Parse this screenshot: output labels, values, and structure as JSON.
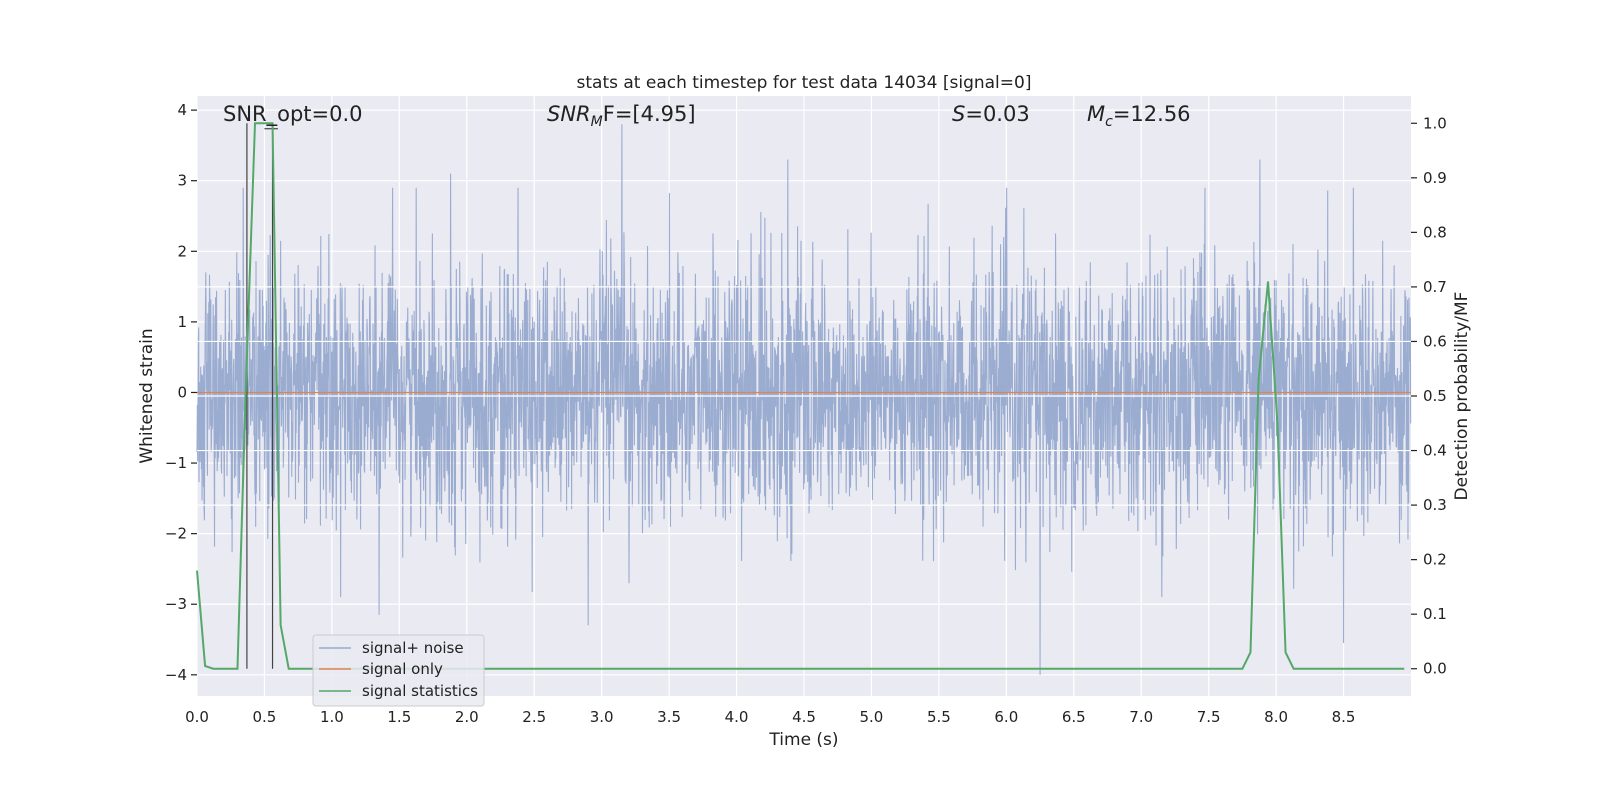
{
  "chart_data": {
    "type": "line",
    "title": "stats at each timestep for test data 14034 [signal=0]",
    "xlabel": "Time (s)",
    "ylabel_left": "Whitened strain",
    "ylabel_right": "Detection probability/MF",
    "xlim": [
      0.0,
      9.0
    ],
    "ylim_left": [
      -4.3,
      4.2
    ],
    "ylim_right": [
      -0.05,
      1.05
    ],
    "xticks": [
      "0.0",
      "0.5",
      "1.0",
      "1.5",
      "2.0",
      "2.5",
      "3.0",
      "3.5",
      "4.0",
      "4.5",
      "5.0",
      "5.5",
      "6.0",
      "6.5",
      "7.0",
      "7.5",
      "8.0",
      "8.5"
    ],
    "yticks_left": [
      "4",
      "3",
      "2",
      "1",
      "0",
      "−1",
      "−2",
      "−3",
      "−4"
    ],
    "yticks_right": [
      "1.0",
      "0.9",
      "0.8",
      "0.7",
      "0.6",
      "0.5",
      "0.4",
      "0.3",
      "0.2",
      "0.1",
      "0.0"
    ],
    "right_grid_values": [
      0.7,
      0.6,
      0.5,
      0.4,
      0.3
    ],
    "grid": true,
    "background": "#eaeaf2",
    "annotations": {
      "snr_opt": "SNR_opt=0.0",
      "snr_mf_main": "SNR",
      "snr_mf_sub": "M",
      "snr_mf_rest": "F=[4.95]",
      "s_main": "S",
      "s_rest": "=0.03",
      "mc_main": "M",
      "mc_sub": "c",
      "mc_rest": "=12.56"
    },
    "vertical_markers_x": [
      0.37,
      0.56
    ],
    "series": [
      {
        "name": "signal+ noise",
        "color": "#97a9cf",
        "axis": "left",
        "description_type": "noise",
        "amplitude_band": [
          -2.0,
          2.0
        ],
        "peaks": [
          [
            3.15,
            3.8
          ],
          [
            4.38,
            3.3
          ],
          [
            7.88,
            3.3
          ],
          [
            1.88,
            3.1
          ],
          [
            6.25,
            -4.0
          ],
          [
            2.9,
            -3.3
          ],
          [
            8.5,
            -3.55
          ],
          [
            1.35,
            -3.15
          ]
        ]
      },
      {
        "name": "signal only",
        "color": "#dd8452",
        "axis": "left",
        "x": [
          0.0,
          9.0
        ],
        "y": [
          0.0,
          0.0
        ]
      },
      {
        "name": "signal statistics",
        "color": "#55a868",
        "axis": "right",
        "x": [
          0.0,
          0.06,
          0.12,
          0.3,
          0.36,
          0.43,
          0.5,
          0.56,
          0.62,
          0.68,
          0.8,
          7.75,
          7.81,
          7.87,
          7.94,
          8.01,
          8.07,
          8.13,
          8.2,
          8.95
        ],
        "y": [
          0.18,
          0.005,
          0.0,
          0.0,
          0.5,
          1.0,
          1.0,
          1.0,
          0.08,
          0.0,
          0.0,
          0.0,
          0.03,
          0.53,
          0.71,
          0.45,
          0.03,
          0.0,
          0.0,
          0.0
        ]
      }
    ],
    "legend": {
      "position": "lower-left",
      "items": [
        {
          "label": "signal+ noise",
          "color": "#97a9cf"
        },
        {
          "label": "signal only",
          "color": "#dd8452"
        },
        {
          "label": "signal statistics",
          "color": "#55a868"
        }
      ]
    }
  }
}
